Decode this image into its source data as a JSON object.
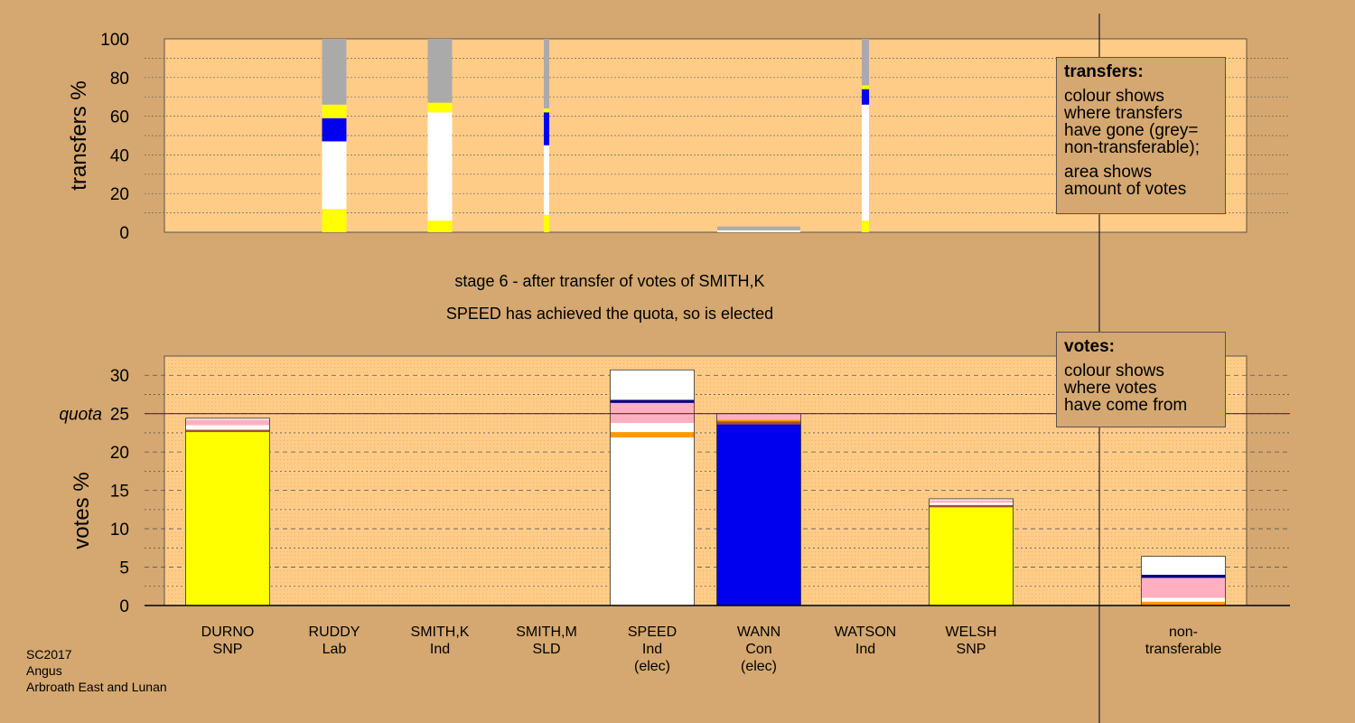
{
  "colors": {
    "background": "#d4a870",
    "plot_area": "#ffcc88",
    "SNP": "#ffff00",
    "Con": "#0000ee",
    "Ind": "#ffffff",
    "Lab": "#ff9900",
    "SLD": "#ffb0c0",
    "non_transferable": "#aaaaaa",
    "navy": "#000080",
    "brown": "#a0522d"
  },
  "captions": {
    "stage": "stage 6 - after transfer of votes of SMITH,K",
    "elected": "SPEED has achieved the quota, so is elected"
  },
  "legend_transfers": {
    "title": "transfers:",
    "lines1": [
      "colour shows",
      "where transfers",
      "have gone (grey=",
      "non-transferable);"
    ],
    "lines2": [
      "area shows",
      "amount of votes"
    ]
  },
  "legend_votes": {
    "title": "votes:",
    "lines": [
      "colour shows",
      "where votes",
      "have come from"
    ]
  },
  "footer": [
    "SC2017",
    "Angus",
    "Arbroath East and Lunan"
  ],
  "chart_data": [
    {
      "type": "bar",
      "ylabel": "transfers %",
      "ylim": [
        0,
        100
      ],
      "yticks": [
        0,
        20,
        40,
        60,
        80,
        100
      ],
      "bars": [
        {
          "candidate": "RUDDY",
          "width_share": 1.0,
          "segments": [
            {
              "party": "SNP",
              "value": 12
            },
            {
              "party": "Ind",
              "value": 35
            },
            {
              "party": "Con",
              "value": 12
            },
            {
              "party": "SNP",
              "value": 7
            },
            {
              "party": "non_transferable",
              "value": 34
            }
          ]
        },
        {
          "candidate": "SMITH,K",
          "width_share": 1.0,
          "segments": [
            {
              "party": "SNP",
              "value": 6
            },
            {
              "party": "Ind",
              "value": 56
            },
            {
              "party": "SNP",
              "value": 5
            },
            {
              "party": "non_transferable",
              "value": 33
            }
          ]
        },
        {
          "candidate": "SMITH,M",
          "width_share": 0.22,
          "segments": [
            {
              "party": "SNP",
              "value": 9
            },
            {
              "party": "Ind",
              "value": 36
            },
            {
              "party": "Con",
              "value": 17
            },
            {
              "party": "SNP",
              "value": 2
            },
            {
              "party": "non_transferable",
              "value": 36
            }
          ]
        },
        {
          "candidate": "WANN",
          "width_share": 3.4,
          "segments": [
            {
              "party": "Ind",
              "value": 1
            },
            {
              "party": "non_transferable",
              "value": 2
            }
          ]
        },
        {
          "candidate": "WATSON",
          "width_share": 0.3,
          "segments": [
            {
              "party": "SNP",
              "value": 6
            },
            {
              "party": "Ind",
              "value": 60
            },
            {
              "party": "Con",
              "value": 8
            },
            {
              "party": "SNP",
              "value": 2
            },
            {
              "party": "non_transferable",
              "value": 24
            }
          ]
        }
      ]
    },
    {
      "type": "bar",
      "ylabel": "votes %",
      "ylim": [
        0,
        32.5
      ],
      "yticks": [
        0,
        5,
        10,
        15,
        20,
        25,
        30
      ],
      "quota": 25,
      "quota_label": "quota",
      "categories": [
        {
          "name": "DURNO",
          "party": "SNP",
          "note": ""
        },
        {
          "name": "RUDDY",
          "party": "Lab",
          "note": ""
        },
        {
          "name": "SMITH,K",
          "party": "Ind",
          "note": ""
        },
        {
          "name": "SMITH,M",
          "party": "SLD",
          "note": ""
        },
        {
          "name": "SPEED",
          "party": "Ind",
          "note": "(elec)"
        },
        {
          "name": "WANN",
          "party": "Con",
          "note": "(elec)"
        },
        {
          "name": "WATSON",
          "party": "Ind",
          "note": ""
        },
        {
          "name": "WELSH",
          "party": "SNP",
          "note": ""
        },
        {
          "name": "non-",
          "party": "transferable",
          "note": ""
        }
      ],
      "stacks": [
        [
          {
            "party": "SNP",
            "value": 22.6
          },
          {
            "party": "brown",
            "value": 0.3
          },
          {
            "party": "Ind",
            "value": 0.6
          },
          {
            "party": "SLD",
            "value": 0.7
          },
          {
            "party": "Ind",
            "value": 0.2
          }
        ],
        [],
        [],
        [],
        [
          {
            "party": "Ind",
            "value": 21.9
          },
          {
            "party": "Lab",
            "value": 0.7
          },
          {
            "party": "Ind",
            "value": 1.2
          },
          {
            "party": "SLD",
            "value": 2.6
          },
          {
            "party": "navy",
            "value": 0.4
          },
          {
            "party": "Ind",
            "value": 3.9
          }
        ],
        [
          {
            "party": "Con",
            "value": 23.6
          },
          {
            "party": "brown",
            "value": 0.4
          },
          {
            "party": "Lab",
            "value": 0.2
          },
          {
            "party": "SLD",
            "value": 0.8
          }
        ],
        [],
        [
          {
            "party": "SNP",
            "value": 12.8
          },
          {
            "party": "brown",
            "value": 0.3
          },
          {
            "party": "Ind",
            "value": 0.3
          },
          {
            "party": "SLD",
            "value": 0.3
          },
          {
            "party": "Ind",
            "value": 0.2
          }
        ],
        [
          {
            "party": "Lab",
            "value": 0.5
          },
          {
            "party": "Ind",
            "value": 0.5
          },
          {
            "party": "SLD",
            "value": 2.6
          },
          {
            "party": "navy",
            "value": 0.4
          },
          {
            "party": "Ind",
            "value": 2.4
          }
        ]
      ]
    }
  ]
}
